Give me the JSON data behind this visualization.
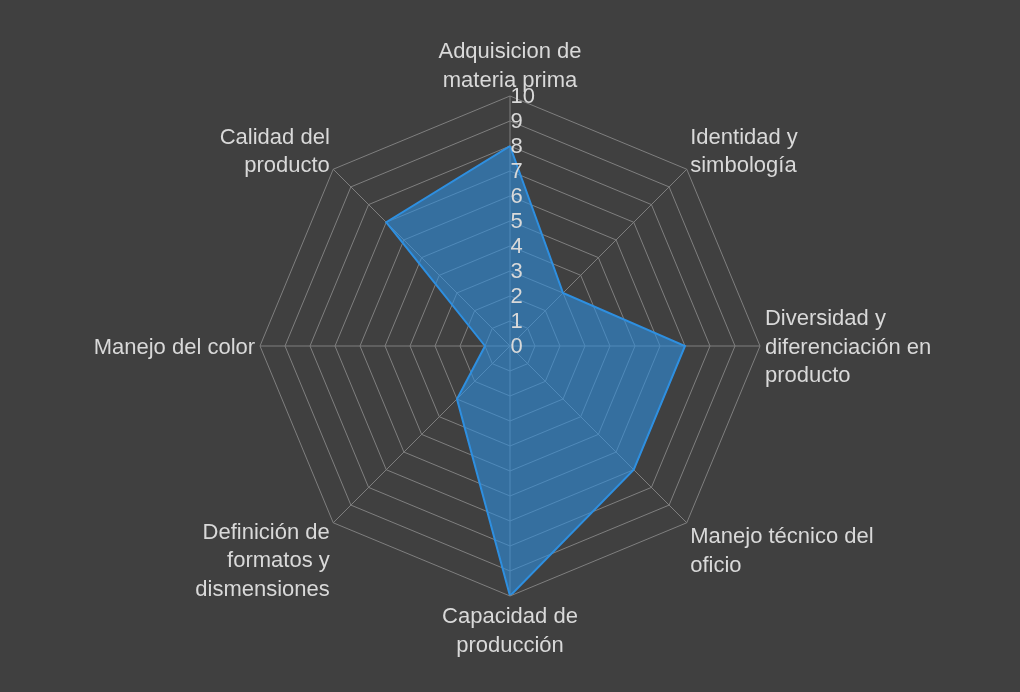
{
  "chart_data": {
    "type": "radar",
    "categories": [
      "Adquisicion de materia prima",
      "Identidad y simbología",
      "Diversidad y diferenciación en producto",
      "Manejo técnico del oficio",
      "Capacidad de producción",
      "Definición de formatos y dismensiones",
      "Manejo del color",
      "Calidad del producto"
    ],
    "series": [
      {
        "color": "#2e8fe0",
        "values": [
          8,
          3,
          7,
          7,
          10,
          3,
          1,
          7
        ]
      }
    ],
    "ylim": [
      0,
      10
    ],
    "yticks": [
      0,
      1,
      2,
      3,
      4,
      5,
      6,
      7,
      8,
      9,
      10
    ],
    "grid": true,
    "marker": "none"
  }
}
